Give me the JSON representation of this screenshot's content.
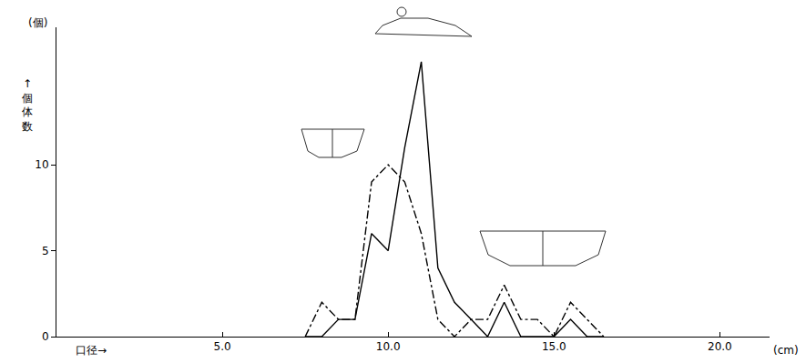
{
  "chart_data": {
    "type": "line",
    "xlabel": "口径→",
    "x_unit": "(cm)",
    "ylabel": "↑個体数",
    "y_unit": "(個)",
    "x": [
      7.5,
      8.0,
      8.5,
      9.0,
      9.5,
      10.0,
      10.5,
      11.0,
      11.5,
      12.0,
      12.5,
      13.0,
      13.5,
      14.0,
      14.5,
      15.0,
      15.5,
      16.0,
      16.5
    ],
    "series": [
      {
        "color": "#000000",
        "line_style": "solid",
        "values": [
          0,
          0,
          1,
          1,
          6,
          5,
          11,
          16,
          4,
          2,
          1,
          0,
          2,
          0,
          0,
          0,
          1,
          0,
          0
        ]
      },
      {
        "color": "#000000",
        "line_style": "dashdot",
        "values": [
          0,
          2,
          1,
          1,
          9,
          10,
          9,
          6,
          1,
          0,
          1,
          1,
          3,
          1,
          1,
          0,
          2,
          1,
          0
        ]
      }
    ],
    "xlim": [
      0,
      21.5
    ],
    "xticks": [
      {
        "value": 5,
        "label": "5.0"
      },
      {
        "value": 10,
        "label": "10.0"
      },
      {
        "value": 15,
        "label": "15.0"
      },
      {
        "value": 20,
        "label": "20.0"
      }
    ],
    "ylim": [
      0,
      18
    ],
    "yticks": [
      0,
      5,
      10
    ],
    "grid": false
  }
}
